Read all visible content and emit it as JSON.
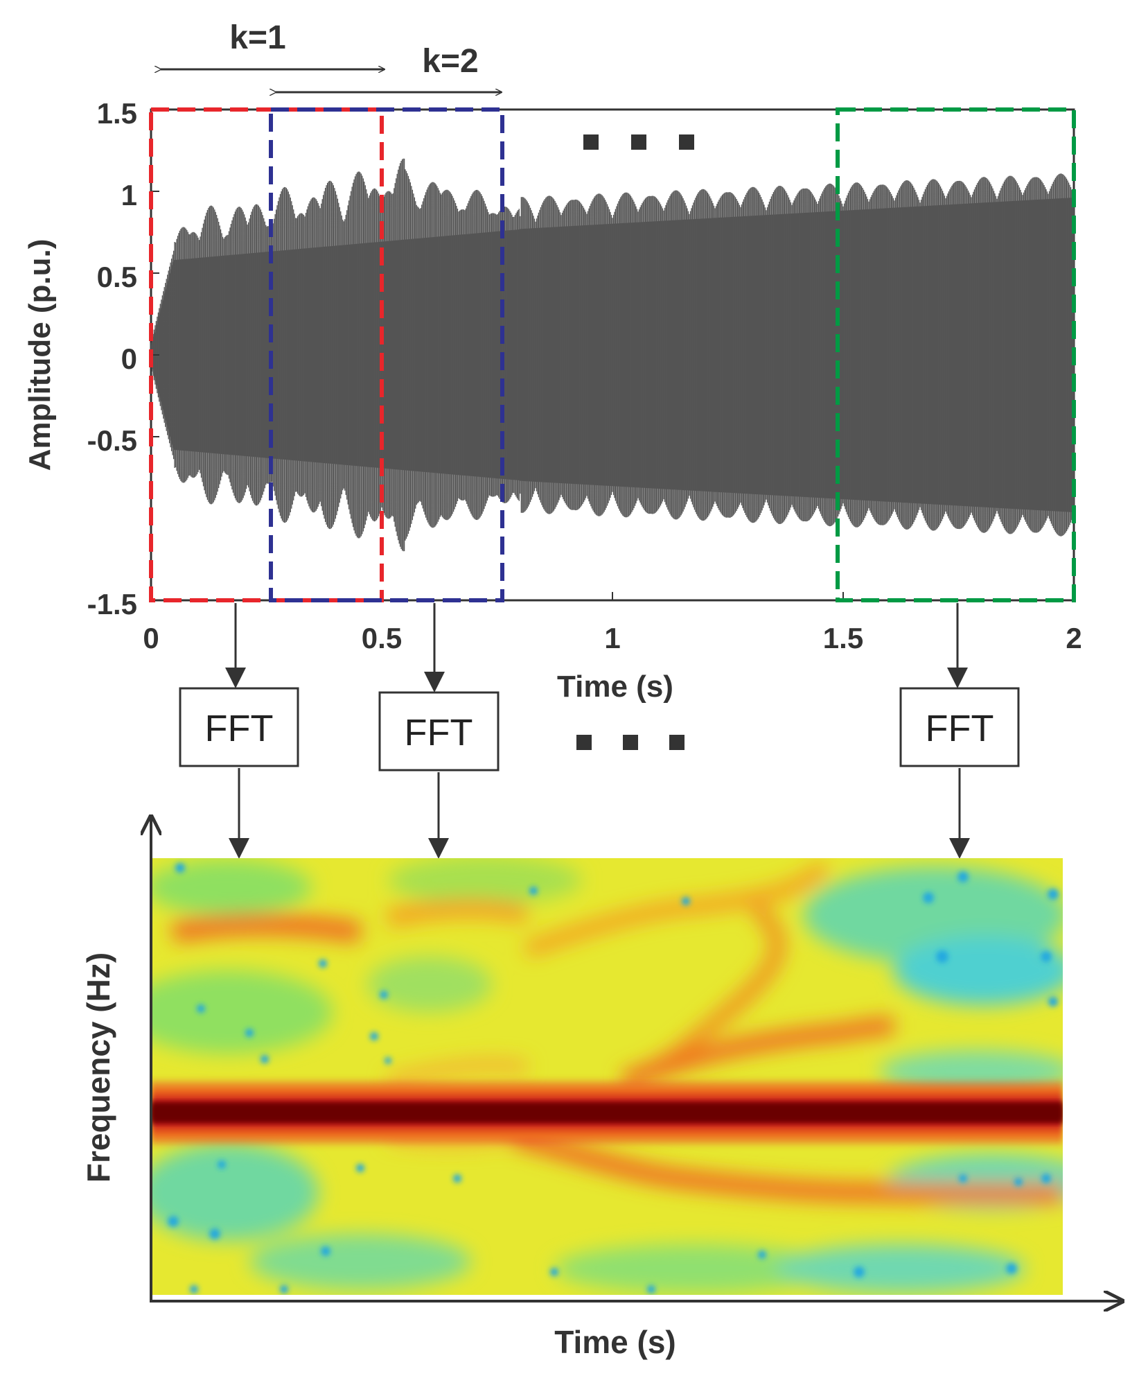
{
  "top_chart": {
    "type": "line",
    "ylabel": "Amplitude (p.u.)",
    "xlabel": "Time (s)",
    "xlim": [
      0,
      2
    ],
    "ylim": [
      -1.5,
      1.5
    ],
    "x_ticks": [
      "0",
      "0.5",
      "1",
      "1.5",
      "2"
    ],
    "y_ticks": [
      "1.5",
      "1",
      "0.5",
      "0",
      "-0.5",
      "-1.5"
    ],
    "signal_color": "#555555"
  },
  "windows": [
    {
      "name": "red",
      "start": 0,
      "end": 0.5,
      "color": "#e8262b"
    },
    {
      "name": "blue",
      "start": 0.26,
      "end": 0.76,
      "color": "#2e3192"
    },
    {
      "name": "green",
      "start": 1.5,
      "end": 2.0,
      "color": "#009a44"
    }
  ],
  "arrows": {
    "k1": "k=1",
    "k2": "k=2"
  },
  "fft_label": "FFT",
  "spectrogram": {
    "ylabel": "Frequency (Hz)",
    "xlabel": "Time (s)"
  },
  "colors": {
    "dark": "#333333",
    "spectro_base": "#e6e830"
  }
}
